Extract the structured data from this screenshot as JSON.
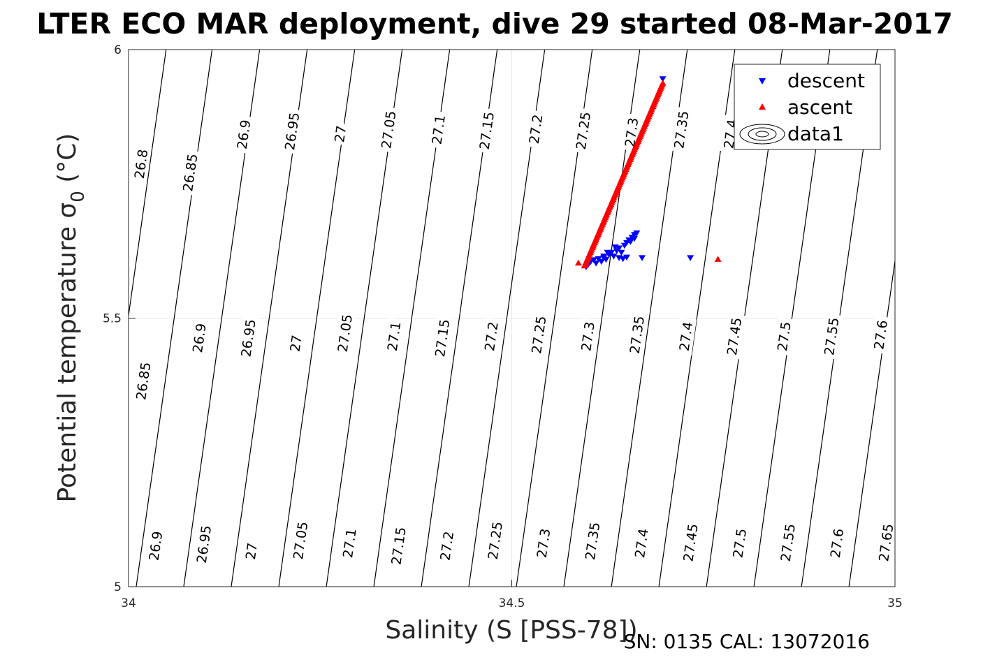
{
  "chart_data": {
    "type": "scatter",
    "title": "LTER ECO MAR deployment, dive 29 started 08-Mar-2017",
    "xlabel": "Salinity (S [PSS-78])",
    "ylabel": "Potential temperature σ",
    "ylabel_sub": "0",
    "ylabel_unit": " (°C)",
    "xlim": [
      34,
      35
    ],
    "ylim": [
      5,
      6
    ],
    "xticks": [
      {
        "value": 34,
        "label": "34"
      },
      {
        "value": 34.5,
        "label": "34.5"
      },
      {
        "value": 35,
        "label": "35"
      }
    ],
    "yticks": [
      {
        "value": 5,
        "label": "5"
      },
      {
        "value": 5.5,
        "label": "5.5"
      },
      {
        "value": 6,
        "label": "6"
      }
    ],
    "grid": true,
    "legend": {
      "placement": "top-right",
      "entries": [
        {
          "name": "descent",
          "marker": "triangle-down",
          "color": "#0000ff"
        },
        {
          "name": "ascent",
          "marker": "triangle-up",
          "color": "#ff0000"
        },
        {
          "name": "data1",
          "marker": "contour",
          "color": "#000000"
        }
      ]
    },
    "series": [
      {
        "name": "descent",
        "color": "#0000ff",
        "marker": "triangle-down",
        "points": [
          [
            34.697,
            5.945
          ],
          [
            34.597,
            5.595
          ],
          [
            34.6,
            5.6
          ],
          [
            34.603,
            5.605
          ],
          [
            34.607,
            5.608
          ],
          [
            34.61,
            5.602
          ],
          [
            34.613,
            5.61
          ],
          [
            34.617,
            5.605
          ],
          [
            34.62,
            5.612
          ],
          [
            34.623,
            5.609
          ],
          [
            34.627,
            5.618
          ],
          [
            34.63,
            5.622
          ],
          [
            34.633,
            5.615
          ],
          [
            34.637,
            5.625
          ],
          [
            34.64,
            5.63
          ],
          [
            34.643,
            5.622
          ],
          [
            34.647,
            5.635
          ],
          [
            34.65,
            5.64
          ],
          [
            34.653,
            5.645
          ],
          [
            34.657,
            5.65
          ],
          [
            34.66,
            5.655
          ],
          [
            34.663,
            5.658
          ],
          [
            34.64,
            5.612
          ],
          [
            34.645,
            5.61
          ],
          [
            34.65,
            5.613
          ],
          [
            34.62,
            5.615
          ],
          [
            34.625,
            5.622
          ],
          [
            34.635,
            5.632
          ],
          [
            34.655,
            5.642
          ],
          [
            34.66,
            5.648
          ],
          [
            34.67,
            5.612
          ],
          [
            34.733,
            5.612
          ]
        ]
      },
      {
        "name": "ascent",
        "color": "#ff0000",
        "marker": "triangle-up",
        "points": [
          [
            34.587,
            5.603
          ],
          [
            34.769,
            5.61
          ],
          [
            34.595,
            5.598
          ]
        ],
        "trail": {
          "from": [
            34.595,
            5.598
          ],
          "to": [
            34.697,
            5.938
          ],
          "count": 110
        }
      }
    ],
    "contours": {
      "color": "#000000",
      "lines": [
        {
          "v": 26.8,
          "s5": 33.95,
          "s6": 34.049,
          "labels": [
            [
              34.016,
              5.787,
              "26.8"
            ]
          ]
        },
        {
          "v": 26.85,
          "s5": 34.01,
          "s6": 34.109,
          "labels": [
            [
              34.019,
              5.383,
              "26.85"
            ],
            [
              34.08,
              5.771,
              "26.85"
            ]
          ]
        },
        {
          "v": 26.9,
          "s5": 34.072,
          "s6": 34.171,
          "labels": [
            [
              34.035,
              5.076,
              "26.9"
            ],
            [
              34.092,
              5.463,
              "26.9"
            ],
            [
              34.15,
              5.842,
              "26.9"
            ]
          ]
        },
        {
          "v": 26.95,
          "s5": 34.134,
          "s6": 34.233,
          "labels": [
            [
              34.098,
              5.079,
              "26.95"
            ],
            [
              34.156,
              5.463,
              "26.95"
            ],
            [
              34.213,
              5.848,
              "26.95"
            ]
          ]
        },
        {
          "v": 27,
          "s5": 34.196,
          "s6": 34.295,
          "labels": [
            [
              34.16,
              5.066,
              "27"
            ],
            [
              34.218,
              5.453,
              "27"
            ],
            [
              34.276,
              5.843,
              "27"
            ]
          ]
        },
        {
          "v": 27.05,
          "s5": 34.258,
          "s6": 34.357,
          "labels": [
            [
              34.224,
              5.086,
              "27.05"
            ],
            [
              34.282,
              5.472,
              "27.05"
            ],
            [
              34.339,
              5.851,
              "27.05"
            ]
          ]
        },
        {
          "v": 27.1,
          "s5": 34.32,
          "s6": 34.419,
          "labels": [
            [
              34.288,
              5.081,
              "27.1"
            ],
            [
              34.346,
              5.466,
              "27.1"
            ],
            [
              34.404,
              5.851,
              "27.1"
            ]
          ]
        },
        {
          "v": 27.15,
          "s5": 34.382,
          "s6": 34.481,
          "labels": [
            [
              34.352,
              5.076,
              "27.15"
            ],
            [
              34.409,
              5.463,
              "27.15"
            ],
            [
              34.467,
              5.849,
              "27.15"
            ]
          ]
        },
        {
          "v": 27.2,
          "s5": 34.444,
          "s6": 34.543,
          "labels": [
            [
              34.415,
              5.076,
              "27.2"
            ],
            [
              34.473,
              5.466,
              "27.2"
            ],
            [
              34.531,
              5.852,
              "27.2"
            ]
          ]
        },
        {
          "v": 27.25,
          "s5": 34.506,
          "s6": 34.605,
          "labels": [
            [
              34.478,
              5.086,
              "27.25"
            ],
            [
              34.535,
              5.469,
              "27.25"
            ],
            [
              34.593,
              5.849,
              "27.25"
            ]
          ]
        },
        {
          "v": 27.3,
          "s5": 34.568,
          "s6": 34.667,
          "labels": [
            [
              34.541,
              5.081,
              "27.3"
            ],
            [
              34.599,
              5.466,
              "27.3"
            ],
            [
              34.656,
              5.846,
              "27.3"
            ]
          ]
        },
        {
          "v": 27.35,
          "s5": 34.63,
          "s6": 34.729,
          "labels": [
            [
              34.605,
              5.085,
              "27.35"
            ],
            [
              34.663,
              5.469,
              "27.35"
            ],
            [
              34.721,
              5.851,
              "27.35"
            ]
          ]
        },
        {
          "v": 27.4,
          "s5": 34.692,
          "s6": 34.791,
          "labels": [
            [
              34.669,
              5.081,
              "27.4"
            ],
            [
              34.727,
              5.466,
              "27.4"
            ],
            [
              34.785,
              5.843,
              "27.4"
            ]
          ]
        },
        {
          "v": 27.45,
          "s5": 34.754,
          "s6": 34.853,
          "labels": [
            [
              34.733,
              5.082,
              "27.45"
            ],
            [
              34.79,
              5.466,
              "27.45"
            ]
          ]
        },
        {
          "v": 27.5,
          "s5": 34.816,
          "s6": 34.915,
          "labels": [
            [
              34.797,
              5.081,
              "27.5"
            ],
            [
              34.855,
              5.466,
              "27.5"
            ]
          ]
        },
        {
          "v": 27.55,
          "s5": 34.878,
          "s6": 34.977,
          "labels": [
            [
              34.86,
              5.082,
              "27.55"
            ],
            [
              34.917,
              5.466,
              "27.55"
            ]
          ]
        },
        {
          "v": 27.6,
          "s5": 34.94,
          "s6": 35.039,
          "labels": [
            [
              34.924,
              5.081,
              "27.6"
            ],
            [
              34.981,
              5.469,
              "27.6"
            ]
          ]
        },
        {
          "v": 27.65,
          "s5": 35.002,
          "s6": 35.101,
          "labels": [
            [
              34.988,
              5.082,
              "27.65"
            ]
          ]
        }
      ]
    }
  },
  "footer": {
    "serial": "SN: 0135  CAL: 13072016"
  }
}
